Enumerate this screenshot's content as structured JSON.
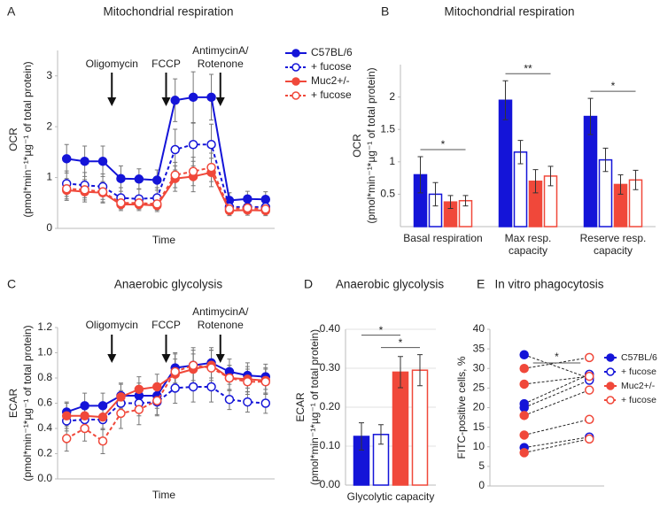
{
  "chart_data": [
    {
      "type": "line",
      "panel": "A",
      "title": "Mitochondrial respiration",
      "xlabel": "Time",
      "ylabel_lines": [
        "OCR",
        "(pmol*min⁻¹*µg⁻¹ of total protein)"
      ],
      "categories": [
        null,
        null,
        null,
        null,
        null,
        null,
        null,
        null,
        null,
        null,
        null,
        null
      ],
      "ylim": [
        0,
        3.5
      ],
      "yticks": [
        0,
        1,
        2,
        3
      ],
      "annotations": [
        [
          "Oligomycin"
        ],
        [
          "FCCP"
        ],
        [
          "AntimycinA/",
          "Rotenone"
        ]
      ],
      "legend": "right",
      "series": [
        {
          "name": "C57BL/6",
          "color": "#1414d8",
          "open": false,
          "dashed": false,
          "values": [
            1.37,
            1.32,
            1.32,
            0.98,
            0.97,
            0.95,
            2.52,
            2.58,
            2.58,
            0.55,
            0.58,
            0.57
          ],
          "errors": [
            0.28,
            0.3,
            0.3,
            0.25,
            0.2,
            0.2,
            0.42,
            0.5,
            0.45,
            0.15,
            0.15,
            0.15
          ]
        },
        {
          "name": "+ fucose",
          "color": "#1414d8",
          "open": true,
          "dashed": true,
          "values": [
            0.88,
            0.85,
            0.82,
            0.6,
            0.58,
            0.6,
            1.55,
            1.65,
            1.65,
            0.42,
            0.42,
            0.42
          ],
          "errors": [
            0.25,
            0.25,
            0.25,
            0.2,
            0.2,
            0.2,
            0.4,
            0.42,
            0.4,
            0.12,
            0.12,
            0.12
          ]
        },
        {
          "name": "Muc2+/-",
          "color": "#f0483a",
          "open": false,
          "dashed": false,
          "values": [
            0.75,
            0.72,
            0.7,
            0.47,
            0.47,
            0.45,
            0.98,
            1.02,
            1.1,
            0.35,
            0.36,
            0.35
          ],
          "errors": [
            0.2,
            0.2,
            0.2,
            0.12,
            0.12,
            0.12,
            0.25,
            0.3,
            0.28,
            0.1,
            0.1,
            0.1
          ]
        },
        {
          "name": "+ fucose",
          "color": "#f0483a",
          "open": true,
          "dashed": true,
          "values": [
            0.78,
            0.76,
            0.72,
            0.5,
            0.5,
            0.48,
            1.05,
            1.12,
            1.2,
            0.38,
            0.4,
            0.38
          ],
          "errors": [
            0.2,
            0.2,
            0.2,
            0.12,
            0.12,
            0.12,
            0.25,
            0.28,
            0.28,
            0.1,
            0.1,
            0.1
          ]
        }
      ]
    },
    {
      "type": "bar",
      "panel": "B",
      "title": "Mitochondrial respiration",
      "ylabel_lines": [
        "OCR",
        "(pmol*min⁻¹*µg⁻¹ of total protein)"
      ],
      "categories": [
        "Basal respiration",
        "Max resp. capacity",
        "Reserve resp. capacity"
      ],
      "ylim": [
        0,
        2.5
      ],
      "yticks": [
        0.5,
        1,
        1.5,
        2
      ],
      "significance": [
        "*",
        "**",
        "*"
      ],
      "series": [
        {
          "color": "#1414d8",
          "open": false,
          "values": [
            0.8,
            1.95,
            1.7
          ],
          "errors": [
            0.28,
            0.3,
            0.28
          ]
        },
        {
          "color": "#1414d8",
          "open": true,
          "values": [
            0.5,
            1.15,
            1.03
          ],
          "errors": [
            0.18,
            0.18,
            0.18
          ]
        },
        {
          "color": "#f0483a",
          "open": false,
          "values": [
            0.38,
            0.7,
            0.65
          ],
          "errors": [
            0.1,
            0.18,
            0.15
          ]
        },
        {
          "color": "#f0483a",
          "open": true,
          "values": [
            0.4,
            0.78,
            0.72
          ],
          "errors": [
            0.08,
            0.15,
            0.15
          ]
        }
      ]
    },
    {
      "type": "line",
      "panel": "C",
      "title": "Anaerobic glycolysis",
      "xlabel": "Time",
      "ylabel_lines": [
        "ECAR",
        "(pmol*min⁻¹*µg⁻¹ of total protein)"
      ],
      "categories": [
        null,
        null,
        null,
        null,
        null,
        null,
        null,
        null,
        null,
        null,
        null,
        null
      ],
      "ylim": [
        0,
        1.2
      ],
      "yticks": [
        {
          "value": 0,
          "label": "0.0"
        },
        0.2,
        0.4,
        0.6,
        0.8,
        {
          "value": 1,
          "label": "1.0"
        },
        1.2
      ],
      "annotations": [
        [
          "Oligomycin"
        ],
        [
          "FCCP"
        ],
        [
          "AntimycinA/",
          "Rotenone"
        ]
      ],
      "series": [
        {
          "color": "#1414d8",
          "open": false,
          "dashed": false,
          "values": [
            0.53,
            0.58,
            0.58,
            0.66,
            0.66,
            0.66,
            0.88,
            0.9,
            0.92,
            0.85,
            0.82,
            0.81
          ],
          "errors": [
            0.08,
            0.1,
            0.1,
            0.1,
            0.1,
            0.1,
            0.12,
            0.12,
            0.12,
            0.1,
            0.1,
            0.1
          ]
        },
        {
          "color": "#1414d8",
          "open": true,
          "dashed": true,
          "values": [
            0.46,
            0.47,
            0.47,
            0.6,
            0.6,
            0.61,
            0.72,
            0.73,
            0.73,
            0.63,
            0.61,
            0.6
          ],
          "errors": [
            0.08,
            0.08,
            0.08,
            0.1,
            0.1,
            0.1,
            0.12,
            0.12,
            0.12,
            0.08,
            0.08,
            0.08
          ]
        },
        {
          "color": "#f0483a",
          "open": false,
          "dashed": false,
          "values": [
            0.5,
            0.5,
            0.49,
            0.65,
            0.71,
            0.73,
            0.83,
            0.87,
            0.9,
            0.8,
            0.79,
            0.78
          ],
          "errors": [
            0.1,
            0.1,
            0.1,
            0.1,
            0.1,
            0.1,
            0.12,
            0.12,
            0.12,
            0.1,
            0.1,
            0.1
          ]
        },
        {
          "color": "#f0483a",
          "open": true,
          "dashed": true,
          "values": [
            0.32,
            0.4,
            0.3,
            0.52,
            0.55,
            0.62,
            0.85,
            0.9,
            0.88,
            0.8,
            0.77,
            0.77
          ],
          "errors": [
            0.1,
            0.1,
            0.1,
            0.12,
            0.12,
            0.12,
            0.14,
            0.14,
            0.14,
            0.1,
            0.1,
            0.1
          ]
        }
      ]
    },
    {
      "type": "bar",
      "panel": "D",
      "title": "Anaerobic glycolysis",
      "ylabel_lines": [
        "ECAR",
        "(pmol*min⁻¹*µg⁻¹ of total protein)"
      ],
      "categories": [
        "Glycolytic capacity"
      ],
      "ylim": [
        0,
        0.4
      ],
      "grid": true,
      "yticks": [
        {
          "value": 0,
          "label": "0.00"
        },
        {
          "value": 0.1,
          "label": "0.10"
        },
        {
          "value": 0.2,
          "label": "0.20"
        },
        {
          "value": 0.3,
          "label": "0.30"
        },
        {
          "value": 0.4,
          "label": "0.40"
        }
      ],
      "significance": [
        "*",
        "*"
      ],
      "series": [
        {
          "color": "#1414d8",
          "open": false,
          "values": [
            0.125
          ],
          "errors": [
            0.035
          ]
        },
        {
          "color": "#1414d8",
          "open": true,
          "values": [
            0.13
          ],
          "errors": [
            0.025
          ]
        },
        {
          "color": "#f0483a",
          "open": false,
          "values": [
            0.29
          ],
          "errors": [
            0.04
          ]
        },
        {
          "color": "#f0483a",
          "open": true,
          "values": [
            0.295
          ],
          "errors": [
            0.04
          ]
        }
      ]
    },
    {
      "type": "paired",
      "panel": "E",
      "title": "In vitro phagocytosis",
      "ylabel_lines": [
        "FITC-positive cells, %"
      ],
      "ylim": [
        0,
        40
      ],
      "yticks": [
        0,
        5,
        10,
        15,
        20,
        25,
        30,
        35,
        40
      ],
      "significance": [
        "*"
      ],
      "legend": "right",
      "series": [
        {
          "name": "C57BL/6",
          "color": "#1414d8",
          "open": false,
          "dashed": false,
          "values": [
            33.5,
            21,
            20,
            9.8
          ]
        },
        {
          "name": "+ fucose",
          "color": "#1414d8",
          "open": true,
          "dashed": true,
          "values": [
            27.5,
            28.5,
            27,
            12.5
          ]
        },
        {
          "name": "Muc2+/-",
          "color": "#f0483a",
          "open": false,
          "dashed": false,
          "values": [
            30,
            26,
            18,
            13,
            8.5
          ]
        },
        {
          "name": "+ fucose",
          "color": "#f0483a",
          "open": true,
          "dashed": true,
          "values": [
            32.8,
            28,
            24.5,
            17,
            12
          ]
        }
      ]
    }
  ]
}
